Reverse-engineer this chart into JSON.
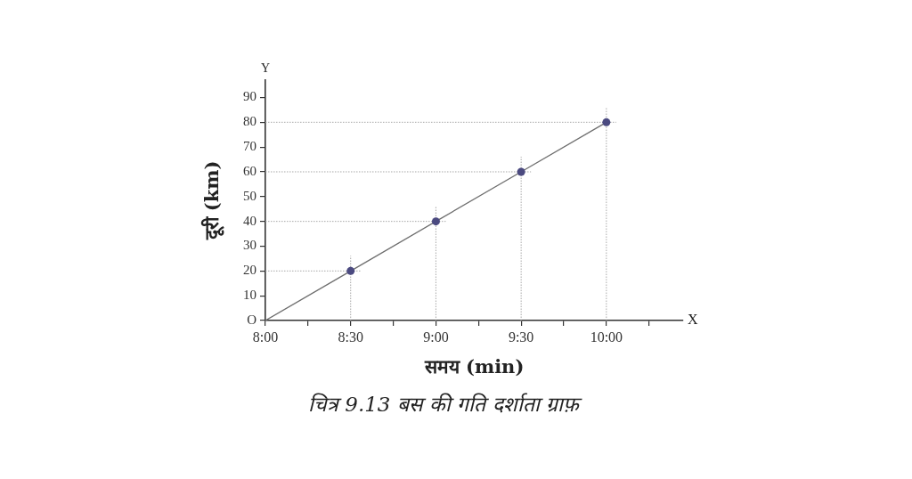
{
  "chart_data": {
    "type": "line",
    "xlabel": "समय (min)",
    "ylabel": "दूरी (km)",
    "annotations": [
      "Y",
      "X",
      "चित्र 9.13 बस की गति दर्शाता ग्राफ़"
    ],
    "x": [
      8,
      8.5,
      9,
      9.5,
      10
    ],
    "series": [
      {
        "color": "#6e6e6e",
        "values": [
          0,
          20,
          40,
          60,
          80
        ],
        "marker": "none"
      },
      {
        "type": "scatter",
        "color": "#4b4a80",
        "x": [
          8.5,
          9,
          9.5,
          10
        ],
        "values": [
          20,
          40,
          60,
          80
        ],
        "marker": "circle"
      }
    ],
    "ref_lines": [
      {
        "axis": "y",
        "value": 20,
        "color": "#a8a8a8",
        "line_style": "dotted"
      },
      {
        "axis": "y",
        "value": 40,
        "color": "#a8a8a8",
        "line_style": "dotted"
      },
      {
        "axis": "y",
        "value": 60,
        "color": "#a8a8a8",
        "line_style": "dotted"
      },
      {
        "axis": "y",
        "value": 80,
        "color": "#a8a8a8",
        "line_style": "dotted"
      },
      {
        "axis": "x",
        "value": 8.5,
        "color": "#a8a8a8",
        "line_style": "dotted"
      },
      {
        "axis": "x",
        "value": 9,
        "color": "#a8a8a8",
        "line_style": "dotted"
      },
      {
        "axis": "x",
        "value": 9.5,
        "color": "#a8a8a8",
        "line_style": "dotted"
      },
      {
        "axis": "x",
        "value": 10,
        "color": "#a8a8a8",
        "line_style": "dotted"
      }
    ],
    "xlim": [
      8,
      10.45
    ],
    "xticks": [
      {
        "value": 8,
        "label": "8:00"
      },
      {
        "value": 8.25,
        "label": null
      },
      {
        "value": 8.5,
        "label": "8:30"
      },
      {
        "value": 8.75,
        "label": null
      },
      {
        "value": 9,
        "label": "9:00"
      },
      {
        "value": 9.25,
        "label": null
      },
      {
        "value": 9.5,
        "label": "9:30"
      },
      {
        "value": 9.75,
        "label": null
      },
      {
        "value": 10,
        "label": "10:00"
      },
      {
        "value": 10.25,
        "label": null
      }
    ],
    "ylim": [
      0,
      97
    ],
    "yticks": [
      {
        "value": 0,
        "label": "O"
      },
      10,
      20,
      30,
      40,
      50,
      60,
      70,
      80,
      90
    ]
  }
}
